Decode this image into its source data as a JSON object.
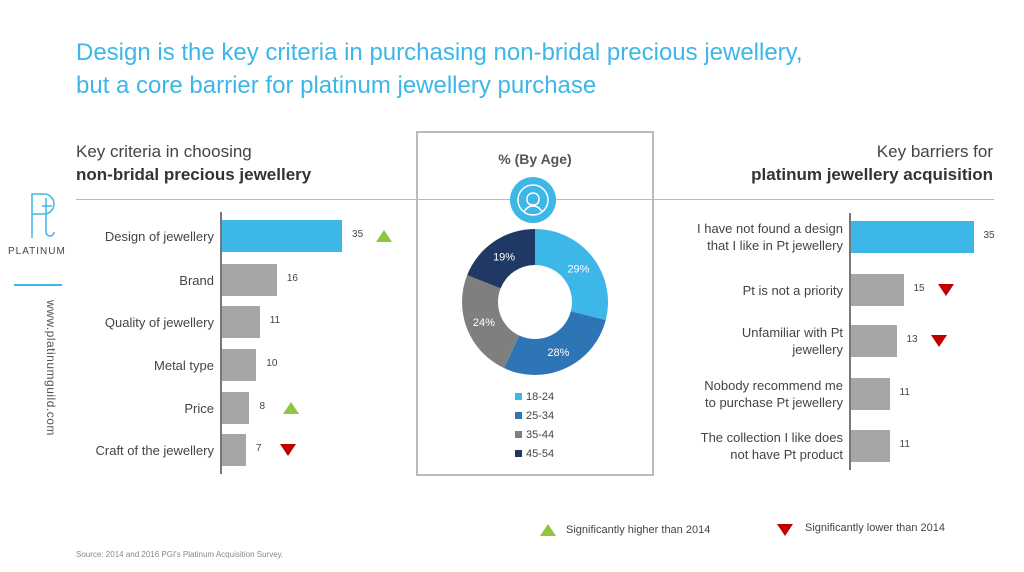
{
  "title_line1": "Design is the key criteria in purchasing non-bridal precious jewellery,",
  "title_line2": "but a core barrier for platinum jewellery purchase",
  "logo": {
    "name": "PLATINUM",
    "url": "www.platinumguild.com"
  },
  "colors": {
    "accent": "#3db6e8",
    "bar": "#a6a6a6",
    "up": "#8dc63f",
    "down": "#c00000"
  },
  "chart_data": [
    {
      "type": "bar",
      "orientation": "horizontal",
      "title_line1": "Key criteria in choosing",
      "title_line2": "non-bridal precious jewellery",
      "categories": [
        "Design of jewellery",
        "Brand",
        "Quality of jewellery",
        "Metal type",
        "Price",
        "Craft of the jewellery"
      ],
      "values": [
        35,
        16,
        11,
        10,
        8,
        7
      ],
      "value_labels": [
        "35",
        "16",
        "11",
        "10",
        "8",
        "7"
      ],
      "change": [
        "up",
        null,
        null,
        null,
        "up",
        "down"
      ]
    },
    {
      "type": "pie",
      "style": "donut",
      "title": "% (By Age)",
      "icon": "female-user-icon",
      "labels": [
        "18-24",
        "25-34",
        "35-44",
        "45-54"
      ],
      "values": [
        29,
        28,
        24,
        19
      ],
      "value_labels": [
        "29%",
        "28%",
        "24%",
        "19%"
      ],
      "colors": [
        "#3db6e8",
        "#2e75b6",
        "#7f7f7f",
        "#1f3864"
      ]
    },
    {
      "type": "bar",
      "orientation": "horizontal",
      "title_line1": "Key barriers for",
      "title_line2": "platinum jewellery acquisition",
      "categories": [
        [
          "I have not found a design",
          "that I like in Pt jewellery"
        ],
        [
          "Pt is not a priority"
        ],
        [
          "Unfamiliar with Pt",
          "jewellery"
        ],
        [
          "Nobody recommend me",
          "to purchase Pt jewellery"
        ],
        [
          "The collection I like does",
          "not have Pt product"
        ]
      ],
      "values": [
        35,
        15,
        13,
        11,
        11
      ],
      "value_labels": [
        "35",
        "15",
        "13",
        "11",
        "11"
      ],
      "change": [
        null,
        "down",
        "down",
        null,
        null
      ]
    }
  ],
  "legend": {
    "up": "Significantly higher than 2014",
    "down": "Significantly lower than 2014"
  },
  "source": "Source: 2014 and 2016 PGI's Platinum Acquisition Survey."
}
